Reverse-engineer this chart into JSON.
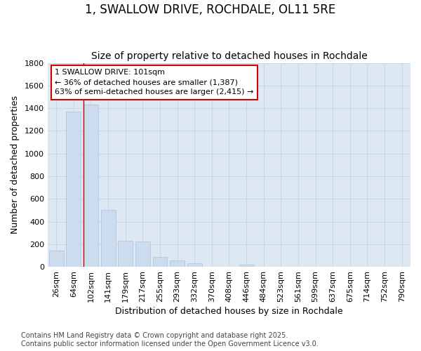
{
  "title_line1": "1, SWALLOW DRIVE, ROCHDALE, OL11 5RE",
  "title_line2": "Size of property relative to detached houses in Rochdale",
  "xlabel": "Distribution of detached houses by size in Rochdale",
  "ylabel": "Number of detached properties",
  "categories": [
    "26sqm",
    "64sqm",
    "102sqm",
    "141sqm",
    "179sqm",
    "217sqm",
    "255sqm",
    "293sqm",
    "332sqm",
    "370sqm",
    "408sqm",
    "446sqm",
    "484sqm",
    "523sqm",
    "561sqm",
    "599sqm",
    "637sqm",
    "675sqm",
    "714sqm",
    "752sqm",
    "790sqm"
  ],
  "values": [
    140,
    1370,
    1430,
    500,
    230,
    225,
    85,
    55,
    30,
    0,
    0,
    20,
    0,
    0,
    0,
    0,
    0,
    0,
    0,
    0,
    0
  ],
  "bar_color": "#ccdcee",
  "bar_edge_color": "#b0c8e0",
  "grid_color": "#c8d8e8",
  "background_color": "#dde8f2",
  "fig_background": "#ffffff",
  "vline_x": 2,
  "vline_color": "#cc0000",
  "annotation_text": "1 SWALLOW DRIVE: 101sqm\n← 36% of detached houses are smaller (1,387)\n63% of semi-detached houses are larger (2,415) →",
  "annotation_box_facecolor": "#ffffff",
  "annotation_box_edgecolor": "#cc0000",
  "ylim": [
    0,
    1800
  ],
  "yticks": [
    0,
    200,
    400,
    600,
    800,
    1000,
    1200,
    1400,
    1600,
    1800
  ],
  "title_fontsize": 12,
  "subtitle_fontsize": 10,
  "axis_label_fontsize": 9,
  "tick_fontsize": 8,
  "annotation_fontsize": 8,
  "footer_fontsize": 7
}
